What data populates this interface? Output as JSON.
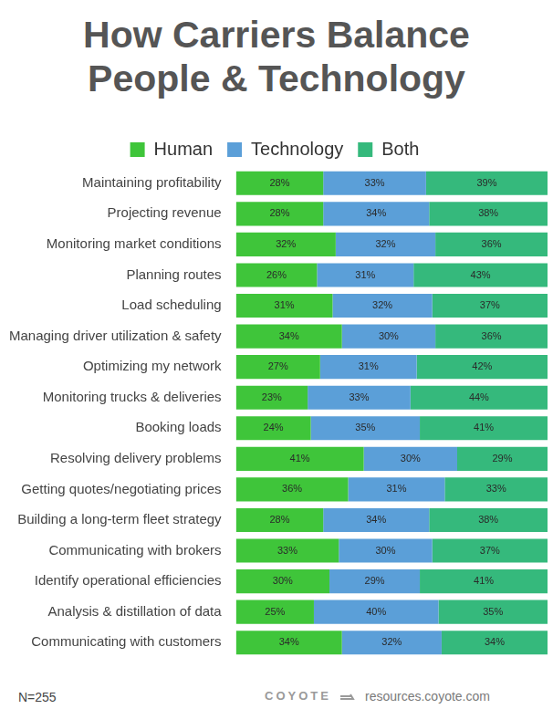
{
  "chart_data": {
    "type": "bar",
    "title": "How Carriers Balance People & Technology",
    "orientation": "horizontal",
    "stacked": true,
    "data_labels": true,
    "legend": "top",
    "grid": false,
    "tick_labels": "y",
    "xlim": [
      0,
      100
    ],
    "categories": [
      "Maintaining profitability",
      "Projecting revenue",
      "Monitoring market conditions",
      "Planning routes",
      "Load scheduling",
      "Managing driver utilization & safety",
      "Optimizing my network",
      "Monitoring trucks & deliveries",
      "Booking loads",
      "Resolving delivery problems",
      "Getting quotes/negotiating prices",
      "Building a long-term fleet strategy",
      "Communicating with brokers",
      "Identify operational efficiencies",
      "Analysis & distillation of data",
      "Communicating with customers"
    ],
    "series": [
      {
        "name": "Human",
        "color": "#3fc53a",
        "values": [
          28,
          28,
          32,
          26,
          31,
          34,
          27,
          23,
          24,
          41,
          36,
          28,
          33,
          30,
          25,
          34
        ],
        "value_labels": [
          "28%",
          "28%",
          "32%",
          "26%",
          "31%",
          "34%",
          "27%",
          "23%",
          "24%",
          "41%",
          "36%",
          "28%",
          "33%",
          "30%",
          "25%",
          "34%"
        ]
      },
      {
        "name": "Technology",
        "color": "#5b9fd8",
        "values": [
          33,
          34,
          32,
          31,
          32,
          30,
          31,
          33,
          35,
          30,
          31,
          34,
          30,
          29,
          40,
          32
        ],
        "value_labels": [
          "33%",
          "34%",
          "32%",
          "31%",
          "32%",
          "30%",
          "31%",
          "33%",
          "35%",
          "30%",
          "31%",
          "34%",
          "30%",
          "29%",
          "40%",
          "32%"
        ]
      },
      {
        "name": "Both",
        "color": "#35b97c",
        "values": [
          39,
          38,
          36,
          43,
          37,
          36,
          42,
          44,
          41,
          29,
          33,
          38,
          37,
          41,
          35,
          34
        ],
        "value_labels": [
          "39%",
          "38%",
          "36%",
          "43%",
          "37%",
          "36%",
          "42%",
          "44%",
          "41%",
          "29%",
          "33%",
          "38%",
          "37%",
          "41%",
          "35%",
          "34%"
        ]
      }
    ],
    "annotations": [
      "N=255",
      "COYOTE",
      "resources.coyote.com"
    ]
  }
}
